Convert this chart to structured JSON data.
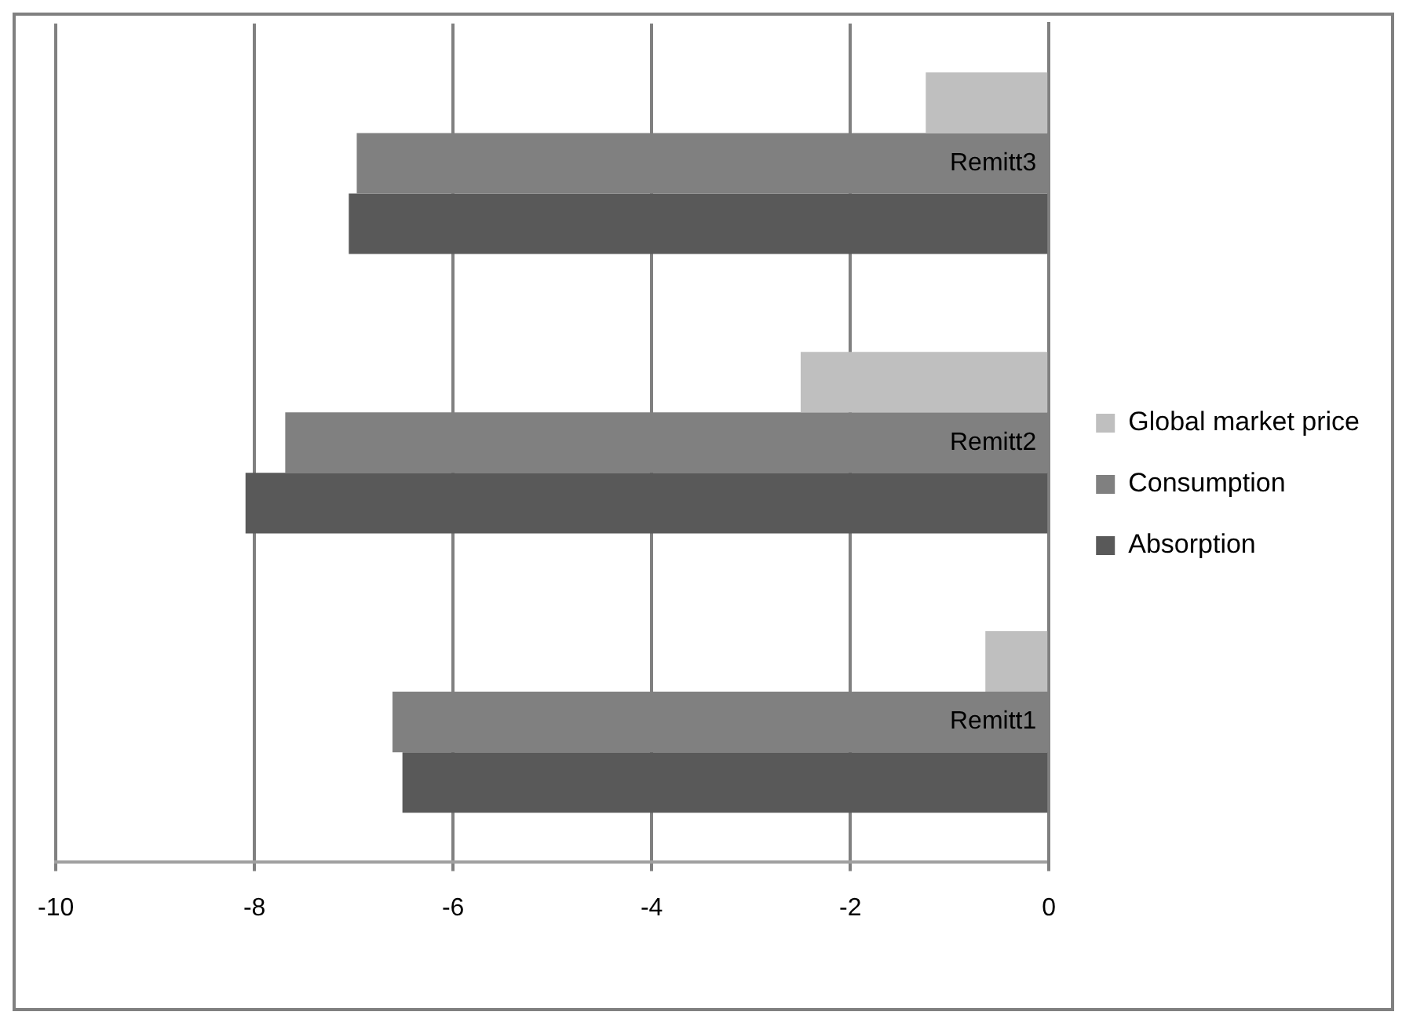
{
  "chart_data": {
    "type": "bar",
    "orientation": "horizontal",
    "categories": [
      "Remitt3",
      "Remitt2",
      "Remitt1"
    ],
    "series": [
      {
        "name": "Global market price",
        "color": "#bfbfbf",
        "values": [
          -1.24,
          -2.5,
          -0.64
        ]
      },
      {
        "name": "Consumption",
        "color": "#808080",
        "values": [
          -6.97,
          -7.69,
          -6.61
        ]
      },
      {
        "name": "Absorption",
        "color": "#595959",
        "values": [
          -7.05,
          -8.09,
          -6.51
        ]
      }
    ],
    "xlim": [
      -10,
      0
    ],
    "xticks": [
      -10,
      -8,
      -6,
      -4,
      -2,
      0
    ],
    "grid": "x",
    "legend": "right"
  }
}
